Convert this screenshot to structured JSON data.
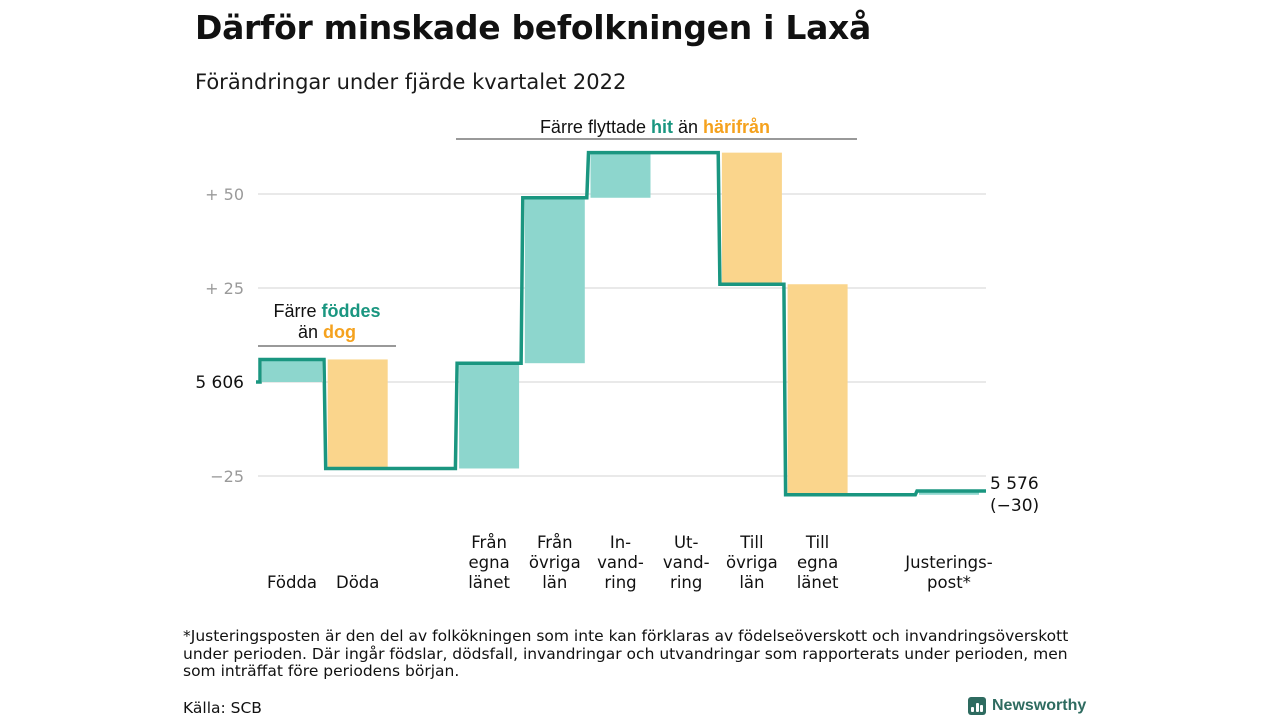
{
  "title": "Därför minskade befolkningen i Laxå",
  "subtitle": "Förändringar under fjärde kvartalet 2022",
  "footnote": "*Justeringsposten är den del av folkökningen som inte kan förklaras av födelseöverskott och invandringsöverskott under perioden. Där ingår födslar, dödsfall, invandringar och utvandringar som rapporterats under perioden, men som inträffat före periodens början.",
  "source": "Källa: SCB",
  "logo_text": "Newsworthy",
  "colors": {
    "line": "#1a9680",
    "increase": "#8dd6cd",
    "decrease": "#fad58c",
    "grid": "#e2e2e2",
    "teal_text": "#1a9680",
    "orange_text": "#f5a21e"
  },
  "chart_data": {
    "type": "waterfall",
    "start_value": 5606,
    "start_label": "5 606",
    "end_label_value": "5 576",
    "end_label_change": "(−30)",
    "y_ticks": [
      {
        "value": 50,
        "label": "+ 50"
      },
      {
        "value": 25,
        "label": "+ 25"
      },
      {
        "value": -25,
        "label": "−25"
      }
    ],
    "ylim": [
      -35,
      60
    ],
    "steps": [
      {
        "category": [
          "Födda"
        ],
        "value": 6,
        "kind": "increase"
      },
      {
        "category": [
          "Döda"
        ],
        "value": -29,
        "kind": "decrease"
      },
      {
        "category": [],
        "value": 0,
        "kind": "none"
      },
      {
        "category": [
          "Från",
          "egna",
          "länet"
        ],
        "value": 28,
        "kind": "increase"
      },
      {
        "category": [
          "Från",
          "övriga",
          "län"
        ],
        "value": 44,
        "kind": "increase"
      },
      {
        "category": [
          "In-",
          "vand-",
          "ring"
        ],
        "value": 12,
        "kind": "increase"
      },
      {
        "category": [
          "Ut-",
          "vand-",
          "ring"
        ],
        "value": 0,
        "kind": "none"
      },
      {
        "category": [
          "Till",
          "övriga",
          "län"
        ],
        "value": -35,
        "kind": "decrease"
      },
      {
        "category": [
          "Till",
          "egna",
          "länet"
        ],
        "value": -56,
        "kind": "decrease"
      },
      {
        "category": [],
        "value": 0,
        "kind": "none"
      },
      {
        "category": [
          "Justerings-",
          "post*"
        ],
        "value": 1,
        "kind": "increase"
      }
    ],
    "annotations": [
      {
        "parts": [
          {
            "text": "Färre ",
            "color": "dark"
          },
          {
            "text": "föddes",
            "color": "teal"
          }
        ],
        "parts2": [
          {
            "text": "än ",
            "color": "dark"
          },
          {
            "text": "dog",
            "color": "orange"
          }
        ]
      },
      {
        "parts": [
          {
            "text": "Färre flyttade ",
            "color": "dark"
          },
          {
            "text": "hit",
            "color": "teal"
          },
          {
            "text": " än ",
            "color": "dark"
          },
          {
            "text": "härifrån",
            "color": "orange"
          }
        ]
      }
    ]
  }
}
